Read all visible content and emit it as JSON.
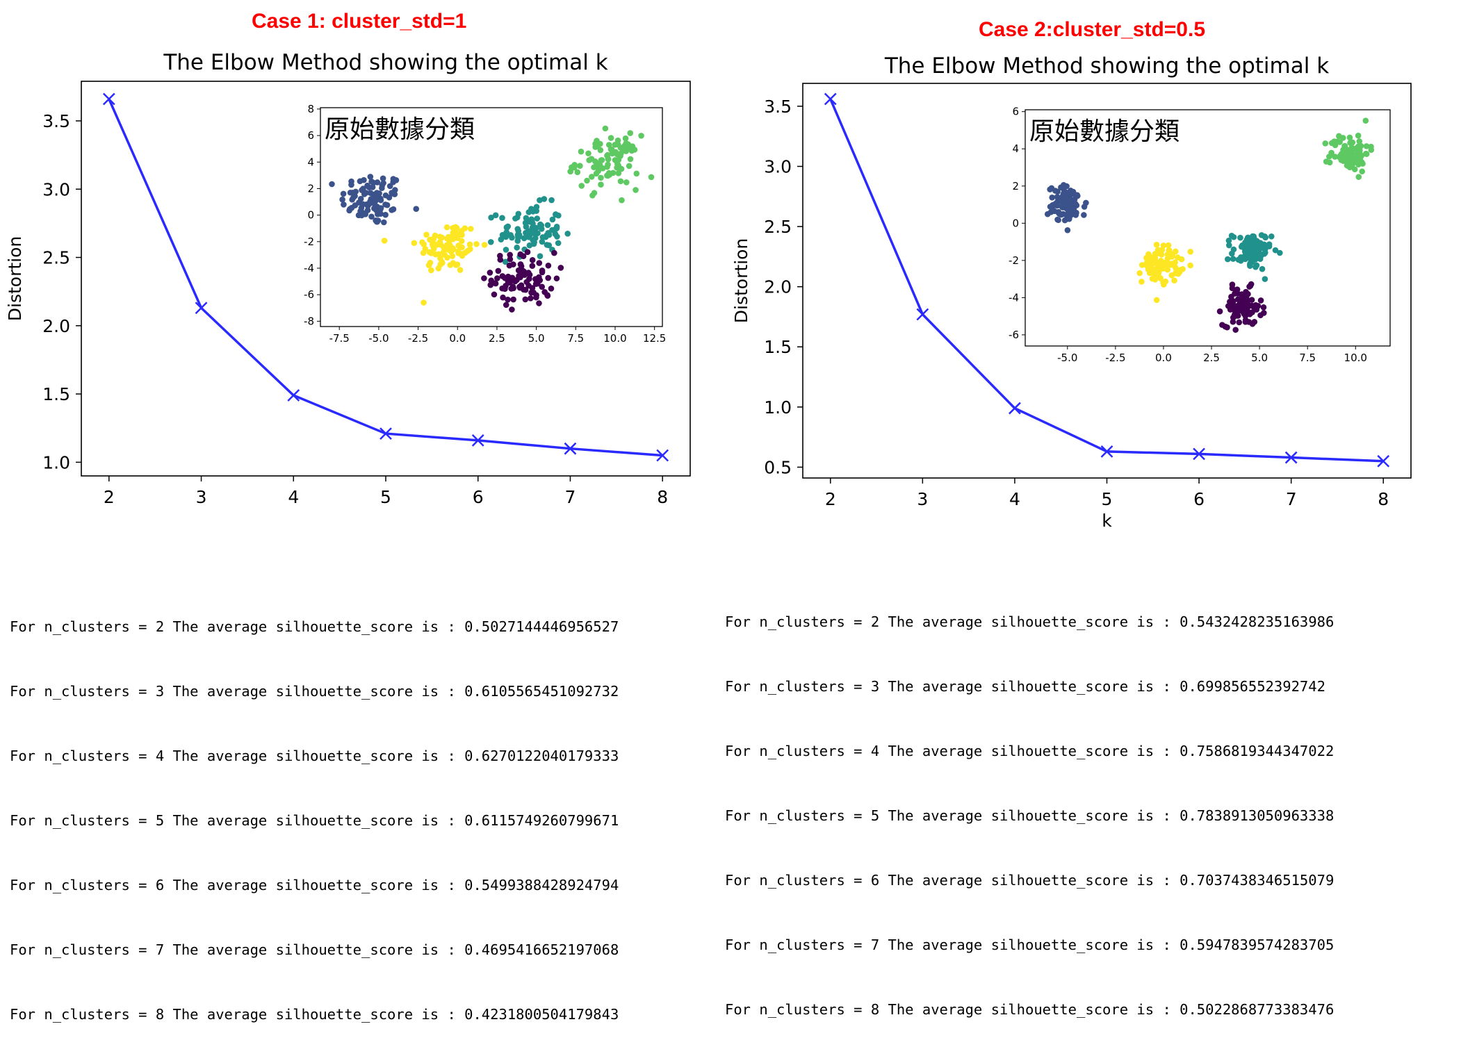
{
  "colors": {
    "line": "#2a2aff",
    "case_title": "#ff0000",
    "cluster_purple": "#440154",
    "cluster_blue": "#3b528b",
    "cluster_teal": "#21918c",
    "cluster_green": "#5ec962",
    "cluster_yellow": "#fde725"
  },
  "case1": {
    "title": "Case 1: cluster_std=1"
  },
  "case2": {
    "title": "Case 2:cluster_std=0.5"
  },
  "chart_data": [
    {
      "type": "line",
      "id": "elbow1",
      "title": "The Elbow Method showing the optimal k",
      "xlabel": "",
      "ylabel": "Distortion",
      "x": [
        2,
        3,
        4,
        5,
        6,
        7,
        8
      ],
      "y": [
        3.66,
        2.13,
        1.49,
        1.21,
        1.16,
        1.1,
        1.05
      ],
      "xticks": [
        "2",
        "3",
        "4",
        "5",
        "6",
        "7",
        "8"
      ],
      "yticks": [
        "1.0",
        "1.5",
        "2.0",
        "2.5",
        "3.0",
        "3.5"
      ],
      "xlim": [
        1.7,
        8.3
      ],
      "ylim": [
        0.9,
        3.79
      ],
      "marker": "x",
      "inset": {
        "type": "scatter",
        "label": "原始數據分類",
        "xlim": [
          -8.7,
          13.0
        ],
        "ylim": [
          -8.4,
          8.1
        ],
        "xticks": [
          "-7.5",
          "-5.0",
          "-2.5",
          "0.0",
          "2.5",
          "5.0",
          "7.5",
          "10.0",
          "12.5"
        ],
        "yticks": [
          "8",
          "6",
          "4",
          "2",
          "0",
          "-2",
          "-4",
          "-6",
          "-8"
        ],
        "clusters": [
          {
            "name": "blue",
            "center": [
              -5.4,
              1.2
            ],
            "std": 1.0,
            "n": 90,
            "color_key": "cluster_blue"
          },
          {
            "name": "yellow",
            "center": [
              -0.6,
              -2.4
            ],
            "std": 1.0,
            "n": 90,
            "color_key": "cluster_yellow"
          },
          {
            "name": "teal",
            "center": [
              4.6,
              -1.2
            ],
            "std": 1.0,
            "n": 90,
            "color_key": "cluster_teal"
          },
          {
            "name": "purple",
            "center": [
              4.2,
              -4.8
            ],
            "std": 1.0,
            "n": 90,
            "color_key": "cluster_purple"
          },
          {
            "name": "green",
            "center": [
              9.5,
              4.0
            ],
            "std": 1.0,
            "n": 90,
            "color_key": "cluster_green"
          }
        ]
      }
    },
    {
      "type": "line",
      "id": "elbow2",
      "title": "The Elbow Method showing the optimal k",
      "xlabel": "k",
      "ylabel": "Distortion",
      "x": [
        2,
        3,
        4,
        5,
        6,
        7,
        8
      ],
      "y": [
        3.56,
        1.77,
        0.99,
        0.63,
        0.61,
        0.58,
        0.55
      ],
      "xticks": [
        "2",
        "3",
        "4",
        "5",
        "6",
        "7",
        "8"
      ],
      "yticks": [
        "0.5",
        "1.0",
        "1.5",
        "2.0",
        "2.5",
        "3.0",
        "3.5"
      ],
      "xlim": [
        1.7,
        8.3
      ],
      "ylim": [
        0.41,
        3.69
      ],
      "marker": "x",
      "inset": {
        "type": "scatter",
        "label": "原始數據分類",
        "xlim": [
          -7.2,
          11.8
        ],
        "ylim": [
          -6.6,
          6.1
        ],
        "xticks": [
          "-5.0",
          "-2.5",
          "0.0",
          "2.5",
          "5.0",
          "7.5",
          "10.0"
        ],
        "yticks": [
          "6",
          "4",
          "2",
          "0",
          "-2",
          "-4",
          "-6"
        ],
        "clusters": [
          {
            "name": "blue",
            "center": [
              -5.0,
              1.0
            ],
            "std": 0.5,
            "n": 90,
            "color_key": "cluster_blue"
          },
          {
            "name": "yellow",
            "center": [
              -0.1,
              -2.2
            ],
            "std": 0.5,
            "n": 90,
            "color_key": "cluster_yellow"
          },
          {
            "name": "teal",
            "center": [
              4.6,
              -1.5
            ],
            "std": 0.5,
            "n": 90,
            "color_key": "cluster_teal"
          },
          {
            "name": "purple",
            "center": [
              4.1,
              -4.5
            ],
            "std": 0.5,
            "n": 90,
            "color_key": "cluster_purple"
          },
          {
            "name": "green",
            "center": [
              9.7,
              3.8
            ],
            "std": 0.5,
            "n": 90,
            "color_key": "cluster_green"
          }
        ]
      }
    }
  ],
  "silhouette1": [
    "For n_clusters = 2 The average silhouette_score is : 0.5027144446956527",
    "For n_clusters = 3 The average silhouette_score is : 0.6105565451092732",
    "For n_clusters = 4 The average silhouette_score is : 0.6270122040179333",
    "For n_clusters = 5 The average silhouette_score is : 0.6115749260799671",
    "For n_clusters = 6 The average silhouette_score is : 0.5499388428924794",
    "For n_clusters = 7 The average silhouette_score is : 0.4695416652197068",
    "For n_clusters = 8 The average silhouette_score is : 0.4231800504179843"
  ],
  "silhouette2": [
    "For n_clusters = 2 The average silhouette_score is : 0.5432428235163986",
    "For n_clusters = 3 The average silhouette_score is : 0.699856552392742",
    "For n_clusters = 4 The average silhouette_score is : 0.7586819344347022",
    "For n_clusters = 5 The average silhouette_score is : 0.7838913050963338",
    "For n_clusters = 6 The average silhouette_score is : 0.7037438346515079",
    "For n_clusters = 7 The average silhouette_score is : 0.5947839574283705",
    "For n_clusters = 8 The average silhouette_score is : 0.5022868773383476"
  ]
}
